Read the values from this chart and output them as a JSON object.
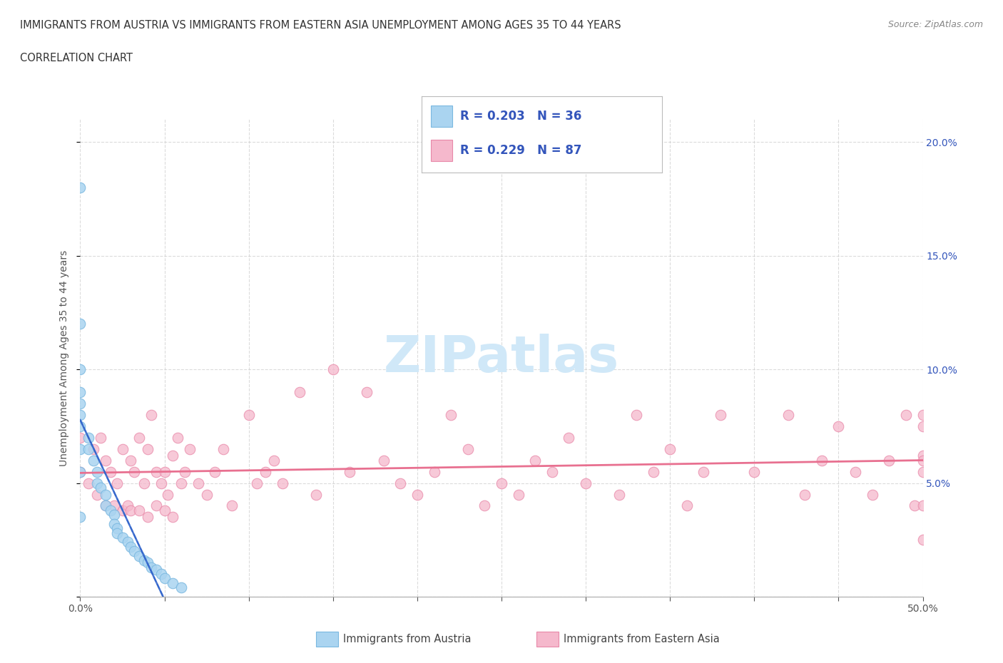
{
  "title_line1": "IMMIGRANTS FROM AUSTRIA VS IMMIGRANTS FROM EASTERN ASIA UNEMPLOYMENT AMONG AGES 35 TO 44 YEARS",
  "title_line2": "CORRELATION CHART",
  "source_text": "Source: ZipAtlas.com",
  "ylabel": "Unemployment Among Ages 35 to 44 years",
  "xlim": [
    0.0,
    0.5
  ],
  "ylim": [
    0.0,
    0.21
  ],
  "background_color": "#ffffff",
  "grid_color": "#cccccc",
  "austria_color": "#aad4f0",
  "austria_edge_color": "#7ab8e0",
  "eastern_asia_color": "#f5b8cc",
  "eastern_asia_edge_color": "#e888a8",
  "austria_trend_color": "#3366cc",
  "eastern_asia_trend_color": "#e87090",
  "legend_text_color": "#3355bb",
  "title_color": "#333333",
  "right_tick_color": "#3355bb",
  "watermark_color": "#d0e8f8",
  "legend_R_austria": "R = 0.203",
  "legend_N_austria": "N = 36",
  "legend_R_eastern_asia": "R = 0.229",
  "legend_N_eastern_asia": "N = 87",
  "legend_label_austria": "Immigrants from Austria",
  "legend_label_eastern_asia": "Immigrants from Eastern Asia",
  "austria_x": [
    0.0,
    0.0,
    0.0,
    0.0,
    0.0,
    0.0,
    0.0,
    0.0,
    0.0,
    0.0,
    0.005,
    0.005,
    0.008,
    0.01,
    0.01,
    0.012,
    0.015,
    0.015,
    0.018,
    0.02,
    0.02,
    0.022,
    0.022,
    0.025,
    0.028,
    0.03,
    0.032,
    0.035,
    0.038,
    0.04,
    0.042,
    0.045,
    0.048,
    0.05,
    0.055,
    0.06
  ],
  "austria_y": [
    0.18,
    0.12,
    0.1,
    0.09,
    0.085,
    0.08,
    0.075,
    0.065,
    0.055,
    0.035,
    0.07,
    0.065,
    0.06,
    0.055,
    0.05,
    0.048,
    0.045,
    0.04,
    0.038,
    0.036,
    0.032,
    0.03,
    0.028,
    0.026,
    0.024,
    0.022,
    0.02,
    0.018,
    0.016,
    0.015,
    0.013,
    0.012,
    0.01,
    0.008,
    0.006,
    0.004
  ],
  "eastern_asia_x": [
    0.0,
    0.0,
    0.005,
    0.008,
    0.01,
    0.012,
    0.015,
    0.015,
    0.018,
    0.02,
    0.022,
    0.025,
    0.025,
    0.028,
    0.03,
    0.03,
    0.032,
    0.035,
    0.035,
    0.038,
    0.04,
    0.04,
    0.042,
    0.045,
    0.045,
    0.048,
    0.05,
    0.05,
    0.052,
    0.055,
    0.055,
    0.058,
    0.06,
    0.062,
    0.065,
    0.07,
    0.075,
    0.08,
    0.085,
    0.09,
    0.1,
    0.105,
    0.11,
    0.115,
    0.12,
    0.13,
    0.14,
    0.15,
    0.16,
    0.17,
    0.18,
    0.19,
    0.2,
    0.21,
    0.22,
    0.23,
    0.24,
    0.25,
    0.26,
    0.27,
    0.28,
    0.29,
    0.3,
    0.32,
    0.33,
    0.34,
    0.35,
    0.36,
    0.37,
    0.38,
    0.4,
    0.42,
    0.43,
    0.44,
    0.45,
    0.46,
    0.47,
    0.48,
    0.49,
    0.495,
    0.5,
    0.5,
    0.5,
    0.5,
    0.5,
    0.5,
    0.5
  ],
  "eastern_asia_y": [
    0.07,
    0.055,
    0.05,
    0.065,
    0.045,
    0.07,
    0.06,
    0.04,
    0.055,
    0.04,
    0.05,
    0.065,
    0.038,
    0.04,
    0.06,
    0.038,
    0.055,
    0.07,
    0.038,
    0.05,
    0.065,
    0.035,
    0.08,
    0.055,
    0.04,
    0.05,
    0.055,
    0.038,
    0.045,
    0.062,
    0.035,
    0.07,
    0.05,
    0.055,
    0.065,
    0.05,
    0.045,
    0.055,
    0.065,
    0.04,
    0.08,
    0.05,
    0.055,
    0.06,
    0.05,
    0.09,
    0.045,
    0.1,
    0.055,
    0.09,
    0.06,
    0.05,
    0.045,
    0.055,
    0.08,
    0.065,
    0.04,
    0.05,
    0.045,
    0.06,
    0.055,
    0.07,
    0.05,
    0.045,
    0.08,
    0.055,
    0.065,
    0.04,
    0.055,
    0.08,
    0.055,
    0.08,
    0.045,
    0.06,
    0.075,
    0.055,
    0.045,
    0.06,
    0.08,
    0.04,
    0.062,
    0.075,
    0.04,
    0.055,
    0.06,
    0.08,
    0.025
  ]
}
